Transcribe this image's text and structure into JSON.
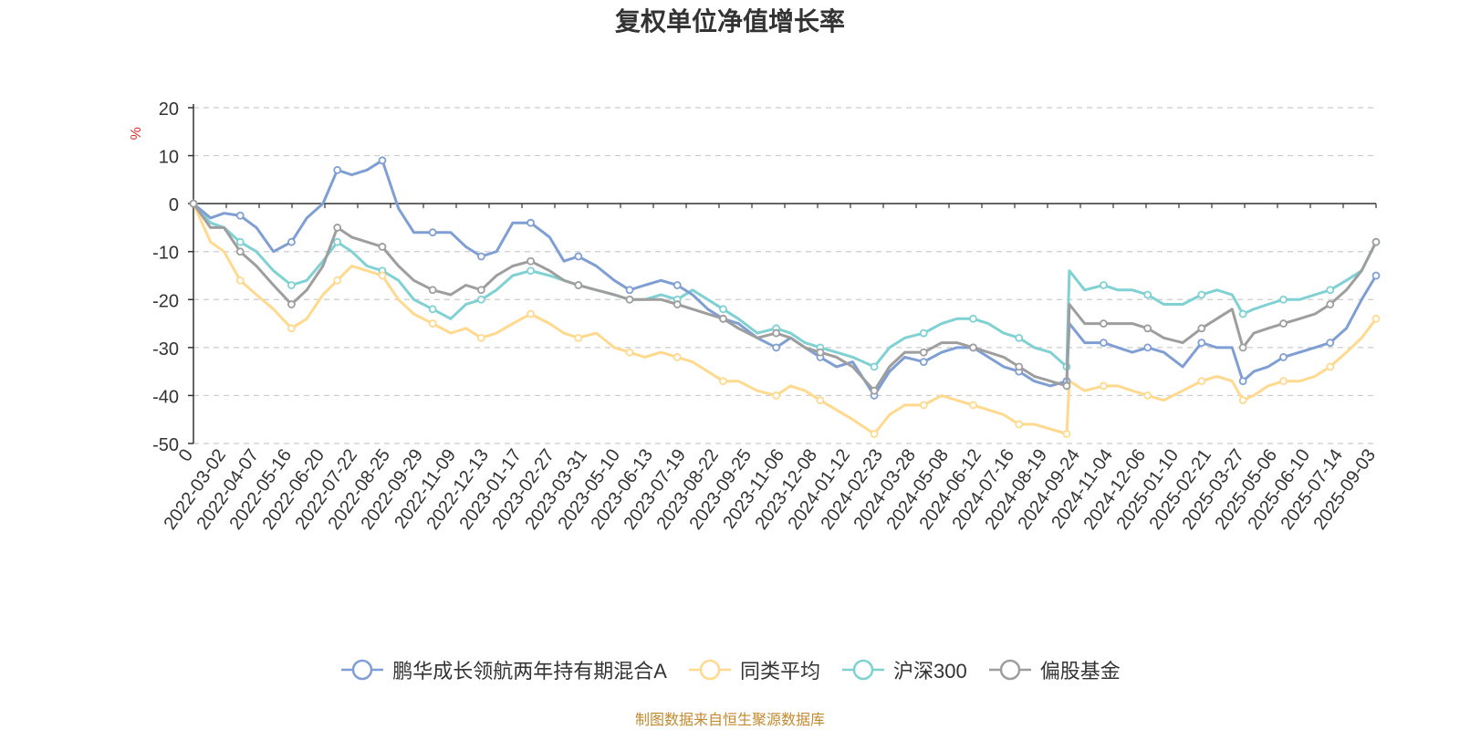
{
  "chart_data": {
    "type": "line",
    "title": "复权单位净值增长率",
    "ylabel": "%",
    "ylim": [
      -50,
      20
    ],
    "yticks": [
      20,
      10,
      0,
      -10,
      -20,
      -30,
      -40,
      -50
    ],
    "grid": true,
    "legend_position": "bottom",
    "x_tick_labels": [
      "0",
      "2022-03-02",
      "2022-04-07",
      "2022-05-16",
      "2022-06-20",
      "2022-07-22",
      "2022-08-25",
      "2022-09-29",
      "2022-11-09",
      "2022-12-13",
      "2023-01-17",
      "2023-02-27",
      "2023-03-31",
      "2023-05-10",
      "2023-06-13",
      "2023-07-19",
      "2023-08-22",
      "2023-09-25",
      "2023-11-06",
      "2023-12-08",
      "2024-01-12",
      "2024-02-23",
      "2024-03-28",
      "2024-05-08",
      "2024-06-12",
      "2024-07-16",
      "2024-08-19",
      "2024-09-24",
      "2024-11-04",
      "2024-12-06",
      "2025-01-10",
      "2025-02-21",
      "2025-03-27",
      "2025-05-06",
      "2025-06-10",
      "2025-07-14",
      "2025-09-03"
    ],
    "x": [
      "2022-01-27",
      "2022-02-15",
      "2022-03-02",
      "2022-03-20",
      "2022-04-07",
      "2022-04-26",
      "2022-05-16",
      "2022-06-02",
      "2022-06-20",
      "2022-07-06",
      "2022-07-22",
      "2022-08-08",
      "2022-08-25",
      "2022-09-12",
      "2022-09-29",
      "2022-10-20",
      "2022-11-09",
      "2022-11-26",
      "2022-12-13",
      "2022-12-30",
      "2023-01-17",
      "2023-02-06",
      "2023-02-27",
      "2023-03-15",
      "2023-03-31",
      "2023-04-20",
      "2023-05-10",
      "2023-05-27",
      "2023-06-13",
      "2023-07-01",
      "2023-07-19",
      "2023-08-05",
      "2023-08-22",
      "2023-09-08",
      "2023-09-25",
      "2023-10-16",
      "2023-11-06",
      "2023-11-22",
      "2023-12-08",
      "2023-12-25",
      "2024-01-12",
      "2024-01-30",
      "2024-02-23",
      "2024-03-11",
      "2024-03-28",
      "2024-04-18",
      "2024-05-08",
      "2024-05-25",
      "2024-06-12",
      "2024-06-29",
      "2024-07-16",
      "2024-08-02",
      "2024-08-19",
      "2024-09-06",
      "2024-09-24",
      "2024-09-27",
      "2024-10-14",
      "2024-11-04",
      "2024-11-20",
      "2024-12-06",
      "2024-12-23",
      "2025-01-10",
      "2025-01-31",
      "2025-02-21",
      "2025-03-10",
      "2025-03-27",
      "2025-04-08",
      "2025-04-20",
      "2025-05-06",
      "2025-05-23",
      "2025-06-10",
      "2025-06-27",
      "2025-07-14",
      "2025-08-01",
      "2025-08-18",
      "2025-09-03"
    ],
    "series": [
      {
        "name": "鹏华成长领航两年持有期混合A",
        "color": "#7f9fd4",
        "values": [
          0,
          -3,
          -2,
          -2.5,
          -5,
          -10,
          -8,
          -3,
          0,
          7,
          6,
          7,
          9,
          -1,
          -6,
          -6,
          -6,
          -9,
          -11,
          -10,
          -4,
          -4,
          -7,
          -12,
          -11,
          -13,
          -16,
          -18,
          -17,
          -16,
          -17,
          -19,
          -22,
          -24,
          -25,
          -28,
          -30,
          -28,
          -30,
          -32,
          -34,
          -33,
          -40,
          -35,
          -32,
          -33,
          -31,
          -30,
          -30,
          -32,
          -34,
          -35,
          -37,
          -38,
          -37,
          -25,
          -29,
          -29,
          -30,
          -31,
          -30,
          -31,
          -34,
          -29,
          -30,
          -30,
          -37,
          -35,
          -34,
          -32,
          -31,
          -30,
          -29,
          -26,
          -20,
          -15
        ]
      },
      {
        "name": "同类平均",
        "color": "#ffd98e",
        "values": [
          0,
          -8,
          -10,
          -16,
          -19,
          -22,
          -26,
          -24,
          -19,
          -16,
          -13,
          -14,
          -15,
          -20,
          -23,
          -25,
          -27,
          -26,
          -28,
          -27,
          -25,
          -23,
          -25,
          -27,
          -28,
          -27,
          -30,
          -31,
          -32,
          -31,
          -32,
          -33,
          -35,
          -37,
          -37,
          -39,
          -40,
          -38,
          -39,
          -41,
          -43,
          -45,
          -48,
          -44,
          -42,
          -42,
          -40,
          -41,
          -42,
          -43,
          -44,
          -46,
          -46,
          -47,
          -48,
          -37,
          -39,
          -38,
          -38,
          -39,
          -40,
          -41,
          -39,
          -37,
          -36,
          -37,
          -41,
          -40,
          -38,
          -37,
          -37,
          -36,
          -34,
          -31,
          -28,
          -24
        ]
      },
      {
        "name": "沪深300",
        "color": "#7fd1d3",
        "values": [
          0,
          -4,
          -5,
          -8,
          -10,
          -14,
          -17,
          -16,
          -12,
          -8,
          -10,
          -13,
          -14,
          -16,
          -20,
          -22,
          -24,
          -21,
          -20,
          -18,
          -15,
          -14,
          -15,
          -16,
          -17,
          -18,
          -19,
          -20,
          -20,
          -19,
          -20,
          -18,
          -20,
          -22,
          -24,
          -27,
          -26,
          -27,
          -29,
          -30,
          -31,
          -32,
          -34,
          -30,
          -28,
          -27,
          -25,
          -24,
          -24,
          -25,
          -27,
          -28,
          -30,
          -31,
          -34,
          -14,
          -18,
          -17,
          -18,
          -18,
          -19,
          -21,
          -21,
          -19,
          -18,
          -19,
          -23,
          -22,
          -21,
          -20,
          -20,
          -19,
          -18,
          -16,
          -14,
          -8
        ]
      },
      {
        "name": "偏股基金",
        "color": "#9e9e9e",
        "values": [
          0,
          -5,
          -5,
          -10,
          -13,
          -17,
          -21,
          -18,
          -13,
          -5,
          -7,
          -8,
          -9,
          -13,
          -16,
          -18,
          -19,
          -17,
          -18,
          -15,
          -13,
          -12,
          -14,
          -16,
          -17,
          -18,
          -19,
          -20,
          -20,
          -20,
          -21,
          -22,
          -23,
          -24,
          -26,
          -28,
          -27,
          -28,
          -30,
          -31,
          -32,
          -34,
          -39,
          -34,
          -31,
          -31,
          -29,
          -29,
          -30,
          -31,
          -32,
          -34,
          -36,
          -37,
          -38,
          -21,
          -25,
          -25,
          -25,
          -25,
          -26,
          -28,
          -29,
          -26,
          -24,
          -22,
          -30,
          -27,
          -26,
          -25,
          -24,
          -23,
          -21,
          -18,
          -14,
          -8
        ]
      }
    ]
  },
  "source_text": "制图数据来自恒生聚源数据库"
}
